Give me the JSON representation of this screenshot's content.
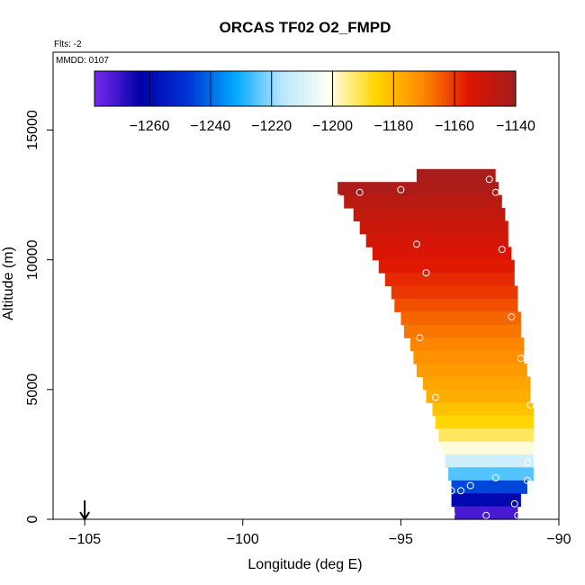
{
  "chart_data": {
    "type": "heatmap",
    "title": "ORCAS TF02 O2_FMPD",
    "flights_label": "Flts: -2",
    "date_label": "MMDD: 0107",
    "xlabel": "Longitude (deg E)",
    "ylabel": "Altitude (m)",
    "xlim": [
      -106,
      -90
    ],
    "ylim": [
      0,
      18000
    ],
    "xticks": [
      -105,
      -100,
      -95,
      -90
    ],
    "yticks": [
      0,
      5000,
      10000,
      15000
    ],
    "color_scale": {
      "range": [
        -1278,
        -1140
      ],
      "ticks": [
        -1260,
        -1240,
        -1220,
        -1200,
        -1180,
        -1160,
        -1140
      ],
      "colors": [
        "#7a2aee",
        "#0000a8",
        "#0034d4",
        "#00a8ff",
        "#b8e6ff",
        "#fffff0",
        "#ffd600",
        "#ff8a00",
        "#e01400",
        "#a01e1e"
      ]
    },
    "arrow_marker": {
      "longitude": -105,
      "label": ""
    },
    "field_slices": [
      {
        "alt": 13000,
        "lon_min": -94.5,
        "lon_max": -92.0,
        "value": -1142
      },
      {
        "alt": 12500,
        "lon_min": -97.0,
        "lon_max": -91.9,
        "value": -1143
      },
      {
        "alt": 12000,
        "lon_min": -96.8,
        "lon_max": -91.8,
        "value": -1146
      },
      {
        "alt": 11500,
        "lon_min": -96.5,
        "lon_max": -91.7,
        "value": -1148
      },
      {
        "alt": 11000,
        "lon_min": -96.3,
        "lon_max": -91.6,
        "value": -1150
      },
      {
        "alt": 10500,
        "lon_min": -96.1,
        "lon_max": -91.6,
        "value": -1152
      },
      {
        "alt": 10000,
        "lon_min": -95.9,
        "lon_max": -91.5,
        "value": -1154
      },
      {
        "alt": 9500,
        "lon_min": -95.7,
        "lon_max": -91.4,
        "value": -1156
      },
      {
        "alt": 9000,
        "lon_min": -95.5,
        "lon_max": -91.4,
        "value": -1158
      },
      {
        "alt": 8500,
        "lon_min": -95.3,
        "lon_max": -91.3,
        "value": -1160
      },
      {
        "alt": 8000,
        "lon_min": -95.2,
        "lon_max": -91.3,
        "value": -1163
      },
      {
        "alt": 7500,
        "lon_min": -95.0,
        "lon_max": -91.2,
        "value": -1166
      },
      {
        "alt": 7000,
        "lon_min": -94.9,
        "lon_max": -91.2,
        "value": -1168
      },
      {
        "alt": 6500,
        "lon_min": -94.7,
        "lon_max": -91.1,
        "value": -1170
      },
      {
        "alt": 6000,
        "lon_min": -94.6,
        "lon_max": -91.1,
        "value": -1172
      },
      {
        "alt": 5500,
        "lon_min": -94.5,
        "lon_max": -91.0,
        "value": -1174
      },
      {
        "alt": 5000,
        "lon_min": -94.3,
        "lon_max": -90.9,
        "value": -1176
      },
      {
        "alt": 4500,
        "lon_min": -94.2,
        "lon_max": -90.9,
        "value": -1178
      },
      {
        "alt": 4000,
        "lon_min": -94.0,
        "lon_max": -90.8,
        "value": -1182
      },
      {
        "alt": 3500,
        "lon_min": -93.9,
        "lon_max": -90.8,
        "value": -1186
      },
      {
        "alt": 3000,
        "lon_min": -93.8,
        "lon_max": -90.8,
        "value": -1192
      },
      {
        "alt": 2500,
        "lon_min": -93.7,
        "lon_max": -90.8,
        "value": -1200
      },
      {
        "alt": 2000,
        "lon_min": -93.6,
        "lon_max": -90.8,
        "value": -1212
      },
      {
        "alt": 1500,
        "lon_min": -93.5,
        "lon_max": -90.8,
        "value": -1225
      },
      {
        "alt": 1000,
        "lon_min": -93.4,
        "lon_max": -91.0,
        "value": -1245
      },
      {
        "alt": 500,
        "lon_min": -93.4,
        "lon_max": -91.2,
        "value": -1260
      },
      {
        "alt": 0,
        "lon_min": -93.3,
        "lon_max": -91.3,
        "value": -1272
      }
    ],
    "observations": [
      {
        "lon": -92.2,
        "alt": 13100
      },
      {
        "lon": -92.0,
        "alt": 12600
      },
      {
        "lon": -95.0,
        "alt": 12700
      },
      {
        "lon": -96.3,
        "alt": 12600
      },
      {
        "lon": -97.0,
        "alt": 12400
      },
      {
        "lon": -94.5,
        "alt": 10600
      },
      {
        "lon": -91.8,
        "alt": 10400
      },
      {
        "lon": -94.2,
        "alt": 9500
      },
      {
        "lon": -91.5,
        "alt": 7800
      },
      {
        "lon": -94.4,
        "alt": 7000
      },
      {
        "lon": -91.2,
        "alt": 6200
      },
      {
        "lon": -93.9,
        "alt": 4700
      },
      {
        "lon": -90.9,
        "alt": 4400
      },
      {
        "lon": -91.0,
        "alt": 2200
      },
      {
        "lon": -92.0,
        "alt": 1600
      },
      {
        "lon": -91.0,
        "alt": 1500
      },
      {
        "lon": -92.8,
        "alt": 1300
      },
      {
        "lon": -93.4,
        "alt": 1100
      },
      {
        "lon": -93.1,
        "alt": 1100
      },
      {
        "lon": -91.4,
        "alt": 600
      },
      {
        "lon": -93.4,
        "alt": 200
      },
      {
        "lon": -92.3,
        "alt": 150
      },
      {
        "lon": -91.3,
        "alt": 150
      }
    ]
  }
}
